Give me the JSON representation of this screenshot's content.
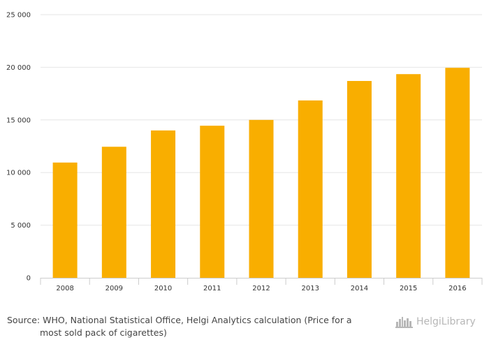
{
  "chart_data": {
    "type": "bar",
    "categories": [
      "2008",
      "2009",
      "2010",
      "2011",
      "2012",
      "2013",
      "2014",
      "2015",
      "2016"
    ],
    "values": [
      10950,
      12450,
      14000,
      14450,
      15000,
      16850,
      18700,
      19350,
      19950
    ],
    "title": "",
    "xlabel": "",
    "ylabel": "",
    "ylim": [
      0,
      25000
    ],
    "yticks": [
      0,
      5000,
      10000,
      15000,
      20000,
      25000
    ],
    "ytick_labels": [
      "0",
      "5 000",
      "10 000",
      "15 000",
      "20 000",
      "25 000"
    ],
    "grid": true,
    "bar_color": "#f9ae00"
  },
  "source": {
    "line1": "Source: WHO, National Statistical Office, Helgi Analytics calculation (Price for a",
    "line2": "most sold pack of cigarettes)"
  },
  "brand": {
    "name": "HelgiLibrary",
    "icon": "city-skyline-icon",
    "color": "#b7b7b7"
  }
}
